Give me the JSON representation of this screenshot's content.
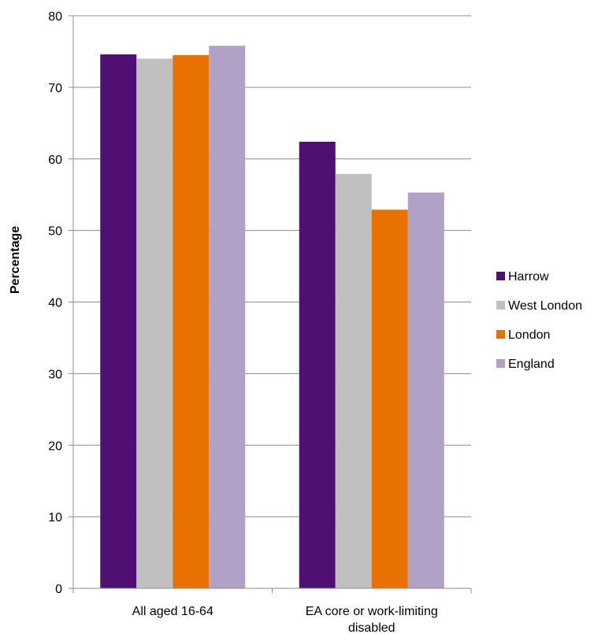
{
  "chart_data": {
    "type": "bar",
    "title": "",
    "xlabel": "",
    "ylabel": "Percentage",
    "ylim": [
      0,
      80
    ],
    "yticks": [
      0,
      10,
      20,
      30,
      40,
      50,
      60,
      70,
      80
    ],
    "grid": true,
    "legend_position": "right",
    "categories": [
      [
        "All aged 16-64"
      ],
      [
        "EA core or work-limiting",
        "disabled"
      ]
    ],
    "series": [
      {
        "name": "Harrow",
        "color": "#4f0f73",
        "values": [
          74.6,
          62.4
        ]
      },
      {
        "name": "West London",
        "color": "#c0c0c0",
        "values": [
          74.0,
          57.9
        ]
      },
      {
        "name": "London",
        "color": "#e87101",
        "values": [
          74.5,
          52.9
        ]
      },
      {
        "name": "England",
        "color": "#b2a1c7",
        "values": [
          75.8,
          55.3
        ]
      }
    ]
  }
}
